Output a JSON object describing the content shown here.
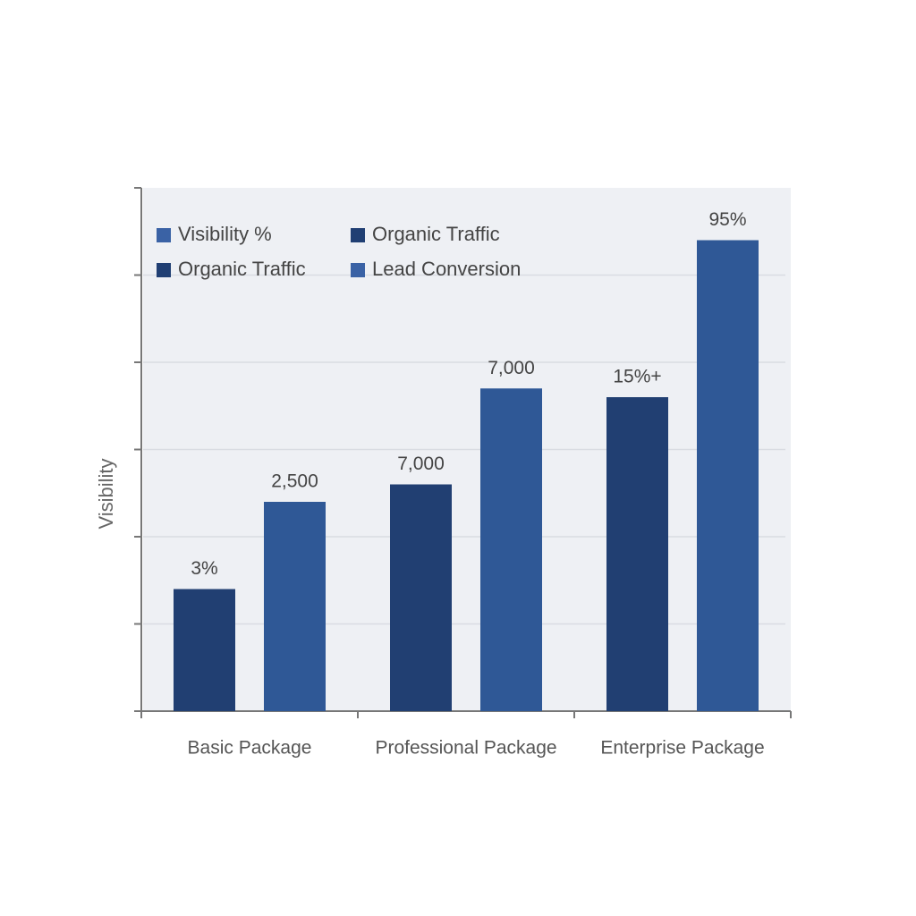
{
  "chart_data": {
    "type": "bar",
    "y_label": "Visibility",
    "categories": [
      "Basic Package",
      "Professional Package",
      "Enterprise Package"
    ],
    "series": [
      {
        "color": "#213f72",
        "values": [
          1.4,
          2.6,
          3.6
        ],
        "annotations": [
          "3%",
          "7,000",
          "15%+"
        ]
      },
      {
        "color": "#2f5896",
        "values": [
          2.4,
          3.7,
          5.4
        ],
        "annotations": [
          "2,500",
          "7,000",
          "95%"
        ]
      }
    ],
    "legend": [
      {
        "label": "Visibility %",
        "color": "#3a62a5"
      },
      {
        "label": "Organic Traffic",
        "color": "#203f73"
      },
      {
        "label": "Organic Traffic",
        "color": "#203f73"
      },
      {
        "label": "Lead Conversion",
        "color": "#3a62a5"
      }
    ],
    "ylim": [
      0,
      6
    ],
    "yticks": [
      0,
      1,
      2,
      3,
      4,
      5,
      6
    ],
    "grid": true
  }
}
